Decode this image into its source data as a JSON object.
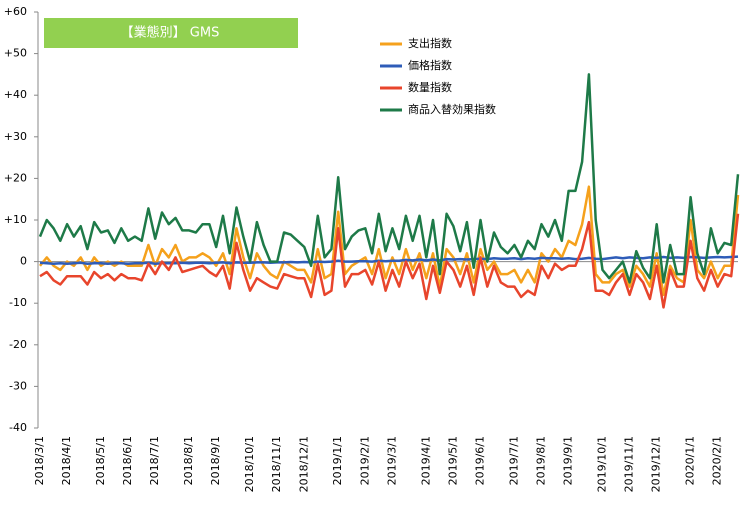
{
  "chart_data": {
    "type": "line",
    "title": "【業態別】 GMS",
    "categories": [
      "2018/3/1",
      null,
      null,
      null,
      "2018/4/1",
      null,
      null,
      null,
      null,
      "2018/5/1",
      null,
      null,
      null,
      "2018/6/1",
      null,
      null,
      null,
      "2018/7/1",
      null,
      null,
      null,
      null,
      "2018/8/1",
      null,
      null,
      null,
      "2018/9/1",
      null,
      null,
      null,
      null,
      "2018/10/1",
      null,
      null,
      null,
      "2018/11/1",
      null,
      null,
      null,
      "2018/12/1",
      null,
      null,
      null,
      null,
      "2019/1/1",
      null,
      null,
      null,
      "2019/2/1",
      null,
      null,
      null,
      "2019/3/1",
      null,
      null,
      null,
      null,
      "2019/4/1",
      null,
      null,
      null,
      "2019/5/1",
      null,
      null,
      null,
      "2019/6/1",
      null,
      null,
      null,
      null,
      "2019/7/1",
      null,
      null,
      null,
      "2019/8/1",
      null,
      null,
      null,
      "2019/9/1",
      null,
      null,
      null,
      null,
      "2019/10/1",
      null,
      null,
      null,
      "2019/11/1",
      null,
      null,
      null,
      "2019/12/1",
      null,
      null,
      null,
      null,
      "2020/1/1",
      null,
      null,
      null,
      "2020/2/1",
      null,
      null,
      null
    ],
    "series": [
      {
        "name": "支出指数",
        "color": "#f5a11c",
        "values": [
          -1,
          1,
          -1,
          -2,
          0,
          -1,
          1,
          -2,
          1,
          -1,
          0,
          -1,
          0,
          -1,
          -1,
          -1,
          4,
          -1,
          3,
          1,
          4,
          0,
          1,
          1,
          2,
          1,
          -1,
          2,
          -3,
          8,
          1,
          -4,
          2,
          -1,
          -3,
          -4,
          0,
          -1,
          -2,
          -2,
          -5,
          3,
          -4,
          -3,
          12,
          -3,
          -1,
          0,
          1,
          -3,
          3,
          -4,
          1,
          -3,
          3,
          -2,
          2,
          -4,
          2,
          -6,
          3,
          1,
          -3,
          2,
          -5,
          3,
          -2,
          0,
          -3,
          -3,
          -2,
          -5,
          -2,
          -5,
          2,
          0,
          3,
          1,
          5,
          4,
          9,
          18,
          -3,
          -5,
          -5,
          -3,
          -2,
          -6,
          -1,
          -3,
          -6,
          2,
          -8,
          -1,
          -4,
          -5,
          10,
          -2,
          -4,
          0,
          -4,
          -1,
          -1,
          16
        ]
      },
      {
        "name": "価格指数",
        "color": "#2e5cb8",
        "values": [
          -0.3,
          -0.4,
          -0.5,
          -0.4,
          -0.5,
          -0.4,
          -0.3,
          -0.5,
          -0.4,
          -0.4,
          -0.5,
          -0.4,
          -0.4,
          -0.5,
          -0.4,
          -0.4,
          -0.3,
          -0.5,
          -0.4,
          -0.4,
          -0.4,
          -0.3,
          -0.4,
          -0.3,
          -0.3,
          -0.4,
          -0.3,
          -0.2,
          -0.4,
          -0.2,
          -0.3,
          -0.3,
          -0.2,
          -0.2,
          -0.3,
          -0.2,
          -0.2,
          -0.1,
          -0.2,
          -0.1,
          -0.2,
          0,
          -0.1,
          0,
          0.2,
          0,
          0,
          0.1,
          0.1,
          0,
          0.2,
          0.1,
          0.2,
          0.2,
          0.4,
          0.3,
          0.5,
          0.3,
          0.5,
          0.3,
          0.6,
          0.5,
          0.6,
          0.5,
          0.6,
          0.7,
          0.6,
          0.8,
          0.7,
          0.7,
          0.8,
          0.6,
          0.8,
          0.7,
          0.9,
          0.8,
          0.8,
          0.7,
          0.8,
          0.6,
          0.7,
          0.9,
          0.7,
          0.6,
          0.8,
          1,
          0.8,
          1,
          0.9,
          0.8,
          1,
          0.9,
          1.1,
          0.9,
          1,
          0.9,
          1.1,
          1,
          0.9,
          1,
          1.1,
          1,
          1.1,
          1.2
        ]
      },
      {
        "name": "数量指数",
        "color": "#e8452c",
        "values": [
          -3.5,
          -2.5,
          -4.5,
          -5.5,
          -3.5,
          -3.5,
          -3.5,
          -5.5,
          -2.5,
          -4,
          -3,
          -4.5,
          -3,
          -4,
          -4,
          -4.5,
          -0.5,
          -3,
          0,
          -2,
          1,
          -2.5,
          -2,
          -1.5,
          -1,
          -2.5,
          -3.5,
          -1,
          -6.5,
          4.5,
          -2,
          -7,
          -4,
          -5,
          -6,
          -6.5,
          -3,
          -3.5,
          -4,
          -4,
          -8.5,
          -0.5,
          -8,
          -7,
          8,
          -6,
          -3,
          -3,
          -2,
          -5.5,
          0,
          -7,
          -2,
          -6,
          0,
          -4,
          -0.5,
          -9,
          -1,
          -7.5,
          0,
          -2,
          -6,
          -1,
          -8,
          1,
          -6,
          -1,
          -5,
          -6,
          -6,
          -8.5,
          -7,
          -8,
          -1,
          -4,
          -0.5,
          -2,
          -1,
          -1,
          3,
          9.5,
          -7,
          -7,
          -8,
          -5,
          -3,
          -8,
          -3,
          -5,
          -9,
          -1,
          -11,
          -2,
          -6,
          -6,
          5,
          -4,
          -7,
          -2,
          -6,
          -3,
          -3.5,
          11.5
        ]
      },
      {
        "name": "商品入替効果指数",
        "color": "#1e7a48",
        "values": [
          6,
          10,
          8,
          5,
          9,
          6,
          8.5,
          3,
          9.5,
          7,
          7.5,
          4.5,
          8,
          5,
          6,
          5,
          12.8,
          5.5,
          11.8,
          9,
          10.5,
          7.5,
          7.5,
          7,
          9,
          9,
          3.5,
          11,
          2,
          13,
          6,
          0,
          9.5,
          4,
          0,
          0,
          7,
          6.5,
          5,
          3.5,
          -1,
          11,
          1,
          3,
          20.3,
          3,
          6,
          7.5,
          8,
          2,
          11.5,
          2.5,
          8,
          3,
          11,
          5,
          11,
          1,
          10,
          -3,
          11.5,
          8.5,
          2.5,
          9.5,
          -1.5,
          10,
          0,
          7,
          3.5,
          2,
          4,
          1,
          5,
          3,
          9,
          6,
          10,
          5,
          17,
          17,
          24,
          45,
          10,
          -2,
          -4,
          -2,
          0,
          -5,
          2.5,
          -1.5,
          -4,
          9,
          -5,
          4,
          -3,
          -3,
          15.5,
          2,
          -3,
          8,
          2,
          4.5,
          4,
          21
        ]
      }
    ],
    "ylim": [
      -40,
      60
    ],
    "yticks": [
      {
        "value": 60,
        "label": "+60"
      },
      {
        "value": 50,
        "label": "+50"
      },
      {
        "value": 40,
        "label": "+40"
      },
      {
        "value": 30,
        "label": "+30"
      },
      {
        "value": 20,
        "label": "+20"
      },
      {
        "value": 10,
        "label": "+10"
      },
      0,
      -10,
      -20,
      -30,
      -40
    ],
    "grid": false
  }
}
